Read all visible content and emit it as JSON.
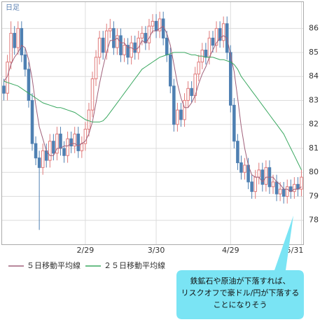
{
  "chart_data": {
    "type": "candlestick",
    "title": "日足",
    "categories": [
      null,
      null,
      null,
      null,
      null,
      null,
      null,
      null,
      null,
      null,
      null,
      null,
      null,
      null,
      null,
      null,
      null,
      null,
      null,
      null,
      null,
      null,
      null,
      "2/29",
      null,
      null,
      null,
      null,
      null,
      null,
      null,
      null,
      null,
      null,
      null,
      null,
      null,
      null,
      null,
      null,
      null,
      null,
      null,
      "3/30",
      null,
      null,
      null,
      null,
      null,
      null,
      null,
      null,
      null,
      null,
      null,
      null,
      null,
      null,
      null,
      null,
      null,
      null,
      null,
      null,
      "4/29",
      null,
      null,
      null,
      null,
      null,
      null,
      null,
      null,
      null,
      null,
      null,
      null,
      null,
      null,
      null,
      null,
      null,
      null,
      null,
      "5/31"
    ],
    "candles": {
      "open": [
        83.6,
        83.3,
        84.6,
        85.8,
        85.2,
        86.0,
        84.9,
        84.3,
        83.0,
        81.2,
        80.6,
        80.2,
        80.9,
        80.5,
        81.3,
        80.8,
        81.6,
        81.0,
        80.7,
        81.4,
        81.1,
        81.6,
        80.9,
        81.2,
        81.8,
        82.6,
        83.9,
        84.8,
        85.6,
        85.0,
        85.9,
        86.0,
        85.2,
        85.7,
        84.9,
        85.3,
        84.8,
        85.4,
        85.0,
        85.6,
        85.8,
        85.4,
        86.1,
        86.3,
        85.9,
        86.4,
        85.6,
        84.9,
        83.6,
        82.0,
        82.6,
        82.2,
        83.0,
        83.5,
        83.2,
        84.1,
        84.6,
        85.1,
        84.8,
        85.6,
        85.3,
        86.0,
        85.5,
        86.2,
        85.0,
        82.8,
        81.3,
        80.4,
        80.0,
        80.3,
        79.6,
        79.2,
        79.8,
        80.1,
        79.5,
        80.2,
        79.4,
        79.6,
        79.1,
        79.3,
        79.0,
        79.4,
        79.2,
        79.5,
        79.3
      ],
      "high": [
        83.9,
        84.9,
        86.3,
        86.1,
        86.3,
        86.3,
        85.2,
        84.6,
        83.3,
        81.5,
        80.9,
        81.2,
        81.2,
        81.6,
        81.6,
        81.9,
        81.9,
        81.3,
        81.7,
        81.7,
        81.9,
        81.9,
        81.5,
        82.1,
        82.9,
        84.2,
        85.1,
        85.9,
        85.9,
        86.2,
        86.4,
        86.3,
        86.0,
        86.0,
        85.6,
        85.6,
        85.7,
        85.7,
        85.9,
        86.1,
        86.1,
        86.4,
        86.6,
        86.6,
        86.7,
        86.7,
        85.9,
        85.2,
        83.9,
        82.9,
        82.9,
        83.3,
        83.8,
        83.8,
        84.4,
        84.9,
        85.4,
        85.4,
        85.9,
        85.9,
        86.3,
        86.3,
        86.5,
        86.5,
        85.3,
        83.1,
        81.6,
        80.7,
        80.6,
        80.6,
        79.9,
        80.1,
        80.4,
        80.4,
        80.5,
        80.5,
        79.9,
        79.9,
        79.6,
        79.6,
        79.7,
        79.7,
        79.8,
        79.8,
        80.1
      ],
      "low": [
        83.0,
        83.0,
        84.3,
        84.9,
        84.9,
        84.6,
        84.0,
        82.7,
        80.9,
        80.3,
        77.6,
        79.9,
        80.2,
        80.2,
        80.5,
        80.5,
        80.7,
        80.4,
        80.4,
        80.8,
        80.8,
        80.6,
        80.6,
        80.9,
        81.5,
        82.3,
        83.6,
        84.5,
        84.7,
        84.7,
        85.6,
        84.9,
        84.9,
        84.6,
        84.6,
        84.5,
        84.5,
        84.7,
        84.7,
        85.3,
        85.1,
        85.1,
        85.8,
        85.6,
        85.6,
        85.3,
        84.6,
        83.3,
        81.7,
        81.7,
        81.9,
        81.9,
        82.7,
        82.9,
        82.9,
        83.8,
        84.3,
        84.5,
        84.5,
        85.0,
        85.0,
        85.2,
        85.2,
        84.7,
        82.5,
        81.0,
        80.1,
        79.7,
        79.7,
        79.3,
        78.9,
        78.9,
        79.5,
        79.2,
        79.2,
        79.1,
        79.1,
        78.8,
        78.8,
        78.7,
        78.7,
        78.9,
        78.9,
        79.0,
        79.0
      ],
      "close": [
        83.3,
        84.6,
        85.8,
        85.2,
        86.0,
        84.9,
        84.3,
        83.0,
        81.2,
        80.6,
        80.2,
        80.9,
        80.5,
        81.3,
        80.8,
        81.6,
        81.0,
        80.7,
        81.4,
        81.1,
        81.6,
        80.9,
        81.2,
        81.8,
        82.6,
        83.9,
        84.8,
        85.6,
        85.0,
        85.9,
        86.0,
        85.2,
        85.7,
        84.9,
        85.3,
        84.8,
        85.4,
        85.0,
        85.6,
        85.8,
        85.4,
        86.1,
        86.3,
        85.9,
        86.4,
        85.6,
        84.9,
        83.6,
        82.0,
        82.6,
        82.2,
        83.0,
        83.5,
        83.2,
        84.1,
        84.6,
        85.1,
        84.8,
        85.6,
        85.3,
        86.0,
        85.5,
        86.2,
        85.0,
        82.8,
        81.3,
        80.4,
        80.0,
        80.3,
        79.6,
        79.2,
        79.8,
        80.1,
        79.5,
        80.2,
        79.4,
        79.6,
        79.1,
        79.3,
        79.0,
        79.4,
        79.2,
        79.5,
        79.3,
        79.8
      ],
      "up_color": "#e07a7a",
      "down_color": "#4f80b2"
    },
    "series": [
      {
        "name": "５日移動平均線",
        "color": "#a0607a",
        "values": [
          83.8,
          84.0,
          84.5,
          84.8,
          85.0,
          85.3,
          85.2,
          84.7,
          83.9,
          82.8,
          81.9,
          81.4,
          80.9,
          80.7,
          80.7,
          81.0,
          81.0,
          81.1,
          81.1,
          81.2,
          81.2,
          81.1,
          81.2,
          81.3,
          81.6,
          82.1,
          82.9,
          83.7,
          84.4,
          85.0,
          85.5,
          85.5,
          85.6,
          85.4,
          85.4,
          85.2,
          85.2,
          85.1,
          85.2,
          85.5,
          85.4,
          85.6,
          85.9,
          85.9,
          86.0,
          86.1,
          85.8,
          85.3,
          84.5,
          83.7,
          83.1,
          82.7,
          82.7,
          82.9,
          83.2,
          83.7,
          84.1,
          84.4,
          84.8,
          85.1,
          85.4,
          85.6,
          85.7,
          85.6,
          84.9,
          84.2,
          83.1,
          81.9,
          81.0,
          80.3,
          79.9,
          79.8,
          79.8,
          79.6,
          79.8,
          79.8,
          79.8,
          79.6,
          79.5,
          79.3,
          79.3,
          79.2,
          79.3,
          79.3,
          79.4
        ]
      },
      {
        "name": "２５日移動平均線",
        "color": "#3aa860",
        "values": [
          83.8,
          83.75,
          83.7,
          83.65,
          83.6,
          83.5,
          83.4,
          83.3,
          83.2,
          83.1,
          83.0,
          82.9,
          82.85,
          82.8,
          82.75,
          82.7,
          82.7,
          82.65,
          82.6,
          82.55,
          82.5,
          82.4,
          82.3,
          82.2,
          82.15,
          82.1,
          82.1,
          82.1,
          82.15,
          82.3,
          82.5,
          82.7,
          82.9,
          83.1,
          83.3,
          83.5,
          83.7,
          83.9,
          84.1,
          84.3,
          84.4,
          84.5,
          84.6,
          84.7,
          84.8,
          84.85,
          84.9,
          84.95,
          85.0,
          85.0,
          85.0,
          85.0,
          84.95,
          84.9,
          84.9,
          84.85,
          84.85,
          84.8,
          84.8,
          84.8,
          84.75,
          84.7,
          84.7,
          84.65,
          84.6,
          84.5,
          84.3,
          84.0,
          83.8,
          83.6,
          83.4,
          83.2,
          83.0,
          82.8,
          82.6,
          82.4,
          82.2,
          82.0,
          81.8,
          81.6,
          81.3,
          81.0,
          80.7,
          80.4,
          80.1
        ]
      }
    ],
    "ylim": [
      77,
      87.1
    ],
    "yticks": [
      78,
      79,
      80,
      81,
      82,
      83,
      84,
      85,
      86
    ],
    "grid": true,
    "annotation": [
      "鉄鉱石や原油が下落すれば、",
      "リスクオフで豪ドル/円が下落する",
      "ことになりそう"
    ],
    "annotation_color": "#7ae4f4"
  }
}
